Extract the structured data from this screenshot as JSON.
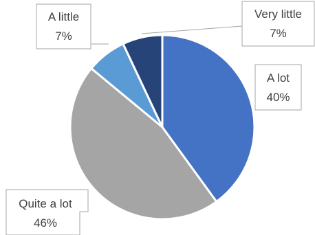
{
  "chart_data": {
    "type": "pie",
    "slices": [
      {
        "label": "A lot",
        "percent_label": "40%",
        "value": 40,
        "color": "#4472C4"
      },
      {
        "label": "Quite a lot",
        "percent_label": "46%",
        "value": 46,
        "color": "#A5A5A5"
      },
      {
        "label": "A little",
        "percent_label": "7%",
        "value": 7,
        "color": "#5B9BD5"
      },
      {
        "label": "Very little",
        "percent_label": "7%",
        "value": 7,
        "color": "#264478"
      }
    ],
    "legend": "none",
    "data_labels": "callouts"
  }
}
